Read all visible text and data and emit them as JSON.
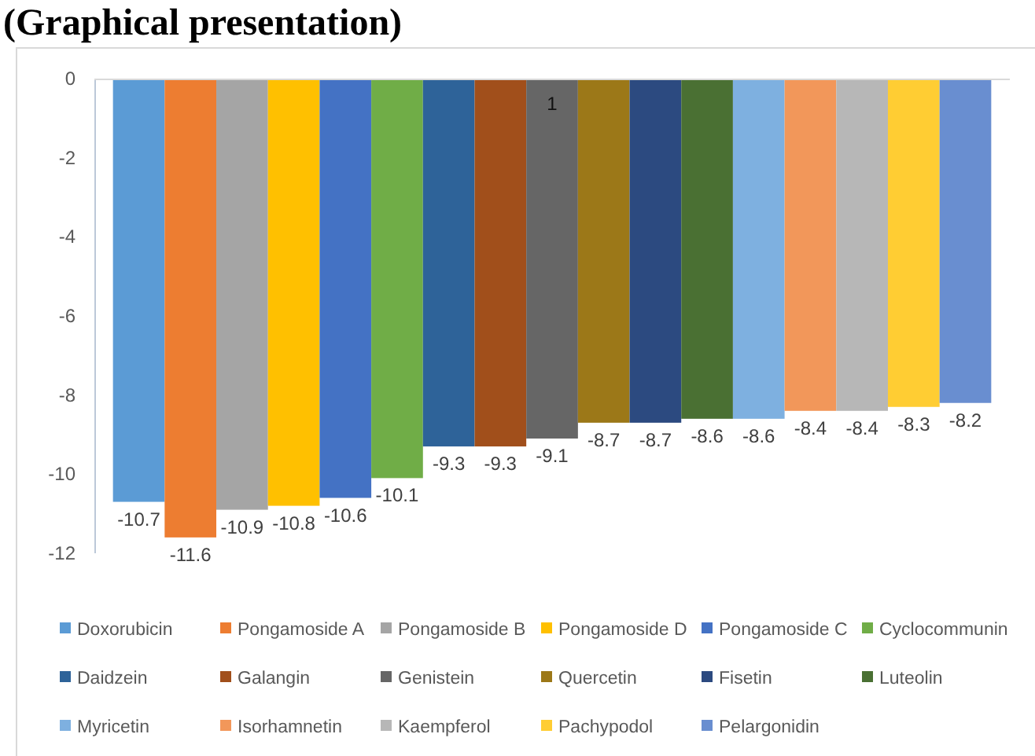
{
  "chart_data": {
    "type": "bar",
    "title": "(Graphical presentation)",
    "categories": [
      null
    ],
    "series": [
      {
        "name": "Doxorubicin",
        "color": "#5b9bd5",
        "values": [
          -10.7
        ]
      },
      {
        "name": "Pongamoside A",
        "color": "#ed7d31",
        "values": [
          -11.6
        ]
      },
      {
        "name": "Pongamoside B",
        "color": "#a5a5a5",
        "values": [
          -10.9
        ]
      },
      {
        "name": "Pongamoside D",
        "color": "#ffc000",
        "values": [
          -10.8
        ]
      },
      {
        "name": "Pongamoside C",
        "color": "#4472c4",
        "values": [
          -10.6
        ]
      },
      {
        "name": "Cyclocommunin",
        "color": "#70ad47",
        "values": [
          -10.1
        ]
      },
      {
        "name": "Daidzein",
        "color": "#2e6399",
        "values": [
          -9.3
        ]
      },
      {
        "name": "Galangin",
        "color": "#a14f1b",
        "values": [
          -9.3
        ]
      },
      {
        "name": "Genistein",
        "color": "#666666",
        "values": [
          -9.1
        ]
      },
      {
        "name": "Quercetin",
        "color": "#9c7818",
        "values": [
          -8.7
        ]
      },
      {
        "name": "Fisetin",
        "color": "#2c4a80",
        "values": [
          -8.7
        ]
      },
      {
        "name": "Luteolin",
        "color": "#4a7033",
        "values": [
          -8.6
        ]
      },
      {
        "name": "Myricetin",
        "color": "#7eb0e0",
        "values": [
          -8.6
        ]
      },
      {
        "name": "Isorhamnetin",
        "color": "#f2975a",
        "values": [
          -8.4
        ]
      },
      {
        "name": "Kaempferol",
        "color": "#b7b7b7",
        "values": [
          -8.4
        ]
      },
      {
        "name": "Pachypodol",
        "color": "#ffcd33",
        "values": [
          -8.3
        ]
      },
      {
        "name": "Pelargonidin",
        "color": "#698ed0",
        "values": [
          -8.2
        ]
      }
    ],
    "ylim": [
      -12,
      0
    ],
    "yticks": [
      0,
      -2,
      -4,
      -6,
      -8,
      -10,
      -12
    ],
    "data_labels": true,
    "legend": "bottom",
    "annotations": [
      "1"
    ]
  }
}
